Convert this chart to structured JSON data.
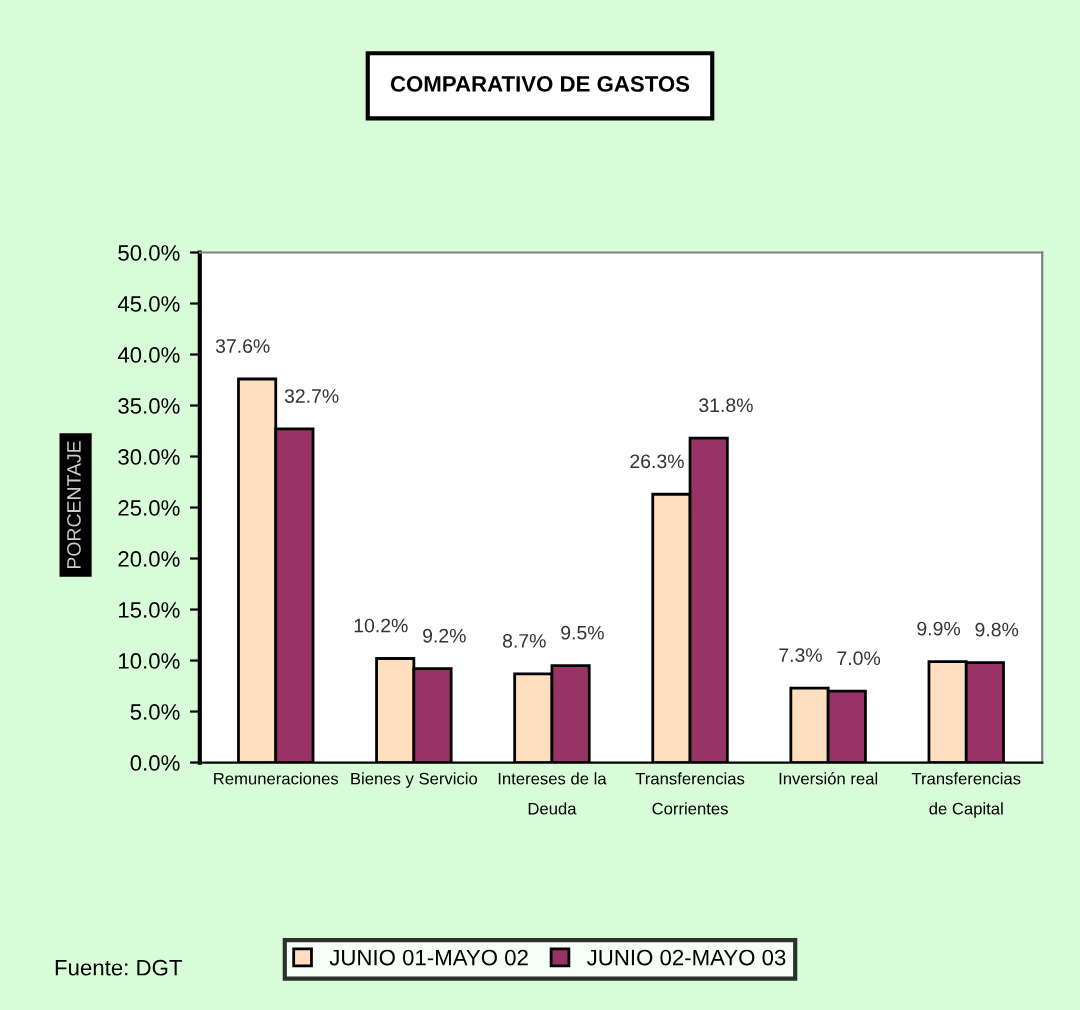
{
  "chart_data": {
    "type": "bar",
    "title": "COMPARATIVO DE GASTOS",
    "ylabel": "PORCENTAJE",
    "categories": [
      "Remuneraciones",
      "Bienes y Servicio",
      "Intereses de la\nDeuda",
      "Transferencias\nCorrientes",
      "Inversión real",
      "Transferencias\nde Capital"
    ],
    "series": [
      {
        "name": "JUNIO 01-MAYO 02",
        "color": "#ffdfc0",
        "values": [
          37.6,
          10.2,
          8.7,
          26.3,
          7.3,
          9.9
        ],
        "value_labels": [
          "37.6%",
          "10.2%",
          "8.7%",
          "26.3%",
          "7.3%",
          "9.9%"
        ]
      },
      {
        "name": "JUNIO 02-MAYO 03",
        "color": "#993366",
        "values": [
          32.7,
          9.2,
          9.5,
          31.8,
          7.0,
          9.8
        ],
        "value_labels": [
          "32.7%",
          "9.2%",
          "9.5%",
          "31.8%",
          "7.0%",
          "9.8%"
        ]
      }
    ],
    "ylim": [
      0,
      50
    ],
    "yticks": [
      {
        "value": 0,
        "label": "0.0%"
      },
      {
        "value": 5,
        "label": "5.0%"
      },
      {
        "value": 10,
        "label": "10.0%"
      },
      {
        "value": 15,
        "label": "15.0%"
      },
      {
        "value": 20,
        "label": "20.0%"
      },
      {
        "value": 25,
        "label": "25.0%"
      },
      {
        "value": 30,
        "label": "30.0%"
      },
      {
        "value": 35,
        "label": "35.0%"
      },
      {
        "value": 40,
        "label": "40.0%"
      },
      {
        "value": 45,
        "label": "45.0%"
      },
      {
        "value": 50,
        "label": "50.0%"
      }
    ],
    "grid": false,
    "legend": "bottom",
    "annotations": [
      "Fuente: DGT"
    ]
  }
}
